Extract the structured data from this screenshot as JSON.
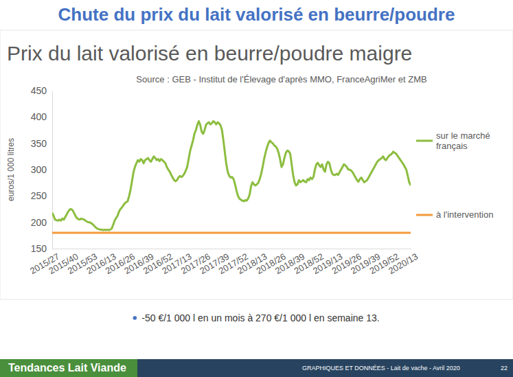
{
  "header": {
    "title": "Chute du prix du lait valorisé en beurre/poudre"
  },
  "chart_data": {
    "type": "line",
    "title": "Prix du lait valorisé en beurre/poudre maigre",
    "subtitle": "Source : GEB - Institut de l'Élevage d'après MMO, FranceAgriMer et ZMB",
    "y_label": "euros/1 000 litres",
    "ylim": [
      150,
      450
    ],
    "yticks": [
      150,
      200,
      250,
      300,
      350,
      400,
      450
    ],
    "grid": false,
    "legend": "right",
    "categories": [
      "2015/27",
      null,
      null,
      null,
      null,
      null,
      null,
      null,
      null,
      null,
      null,
      null,
      null,
      "2015/40",
      null,
      null,
      null,
      null,
      null,
      null,
      null,
      null,
      null,
      null,
      null,
      null,
      "2015/53",
      null,
      null,
      null,
      null,
      null,
      null,
      null,
      null,
      null,
      null,
      null,
      null,
      "2016/13",
      null,
      null,
      null,
      null,
      null,
      null,
      null,
      null,
      null,
      null,
      null,
      null,
      "2016/26",
      null,
      null,
      null,
      null,
      null,
      null,
      null,
      null,
      null,
      null,
      null,
      null,
      "2016/39",
      null,
      null,
      null,
      null,
      null,
      null,
      null,
      null,
      null,
      null,
      null,
      null,
      "2016/52",
      null,
      null,
      null,
      null,
      null,
      null,
      null,
      null,
      null,
      null,
      null,
      null,
      "2017/13",
      null,
      null,
      null,
      null,
      null,
      null,
      null,
      null,
      null,
      null,
      null,
      null,
      "2017/26",
      null,
      null,
      null,
      null,
      null,
      null,
      null,
      null,
      null,
      null,
      null,
      null,
      "2017/39",
      null,
      null,
      null,
      null,
      null,
      null,
      null,
      null,
      null,
      null,
      null,
      null,
      "2017/52",
      null,
      null,
      null,
      null,
      null,
      null,
      null,
      null,
      null,
      null,
      null,
      null,
      "2018/13",
      null,
      null,
      null,
      null,
      null,
      null,
      null,
      null,
      null,
      null,
      null,
      null,
      "2018/26",
      null,
      null,
      null,
      null,
      null,
      null,
      null,
      null,
      null,
      null,
      null,
      null,
      "2018/39",
      null,
      null,
      null,
      null,
      null,
      null,
      null,
      null,
      null,
      null,
      null,
      null,
      "2018/52",
      null,
      null,
      null,
      null,
      null,
      null,
      null,
      null,
      null,
      null,
      null,
      null,
      "2019/13",
      null,
      null,
      null,
      null,
      null,
      null,
      null,
      null,
      null,
      null,
      null,
      null,
      "2019/26",
      null,
      null,
      null,
      null,
      null,
      null,
      null,
      null,
      null,
      null,
      null,
      null,
      "2019/39",
      null,
      null,
      null,
      null,
      null,
      null,
      null,
      null,
      null,
      null,
      null,
      null,
      "2019/52",
      null,
      null,
      null,
      null,
      null,
      null,
      null,
      null,
      null,
      null,
      null,
      null,
      "2020/13"
    ],
    "series": [
      {
        "name": "sur le marché français",
        "color": "#8cbd3f",
        "values": [
          218,
          212,
          205,
          204,
          203,
          205,
          203,
          207,
          205,
          210,
          215,
          220,
          224,
          225,
          223,
          218,
          212,
          208,
          206,
          205,
          207,
          206,
          205,
          203,
          201,
          200,
          200,
          198,
          196,
          193,
          190,
          188,
          187,
          186,
          186,
          185,
          186,
          185,
          186,
          185,
          186,
          188,
          195,
          203,
          208,
          212,
          220,
          225,
          228,
          232,
          236,
          238,
          240,
          250,
          262,
          278,
          295,
          305,
          312,
          318,
          315,
          320,
          318,
          312,
          318,
          320,
          322,
          318,
          315,
          320,
          325,
          322,
          318,
          320,
          316,
          320,
          318,
          315,
          312,
          305,
          300,
          296,
          290,
          285,
          280,
          278,
          280,
          285,
          288,
          286,
          288,
          292,
          298,
          305,
          320,
          335,
          345,
          355,
          368,
          375,
          385,
          392,
          385,
          372,
          368,
          375,
          385,
          388,
          390,
          386,
          388,
          392,
          390,
          386,
          390,
          388,
          384,
          375,
          355,
          332,
          310,
          295,
          288,
          285,
          286,
          282,
          272,
          260,
          250,
          245,
          243,
          241,
          240,
          242,
          241,
          245,
          252,
          268,
          276,
          272,
          270,
          272,
          275,
          282,
          292,
          305,
          320,
          332,
          342,
          350,
          355,
          352,
          350,
          346,
          344,
          340,
          332,
          320,
          305,
          310,
          322,
          332,
          336,
          335,
          330,
          310,
          290,
          276,
          270,
          272,
          280,
          276,
          278,
          280,
          277,
          276,
          282,
          280,
          285,
          282,
          286,
          300,
          310,
          313,
          308,
          305,
          310,
          300,
          296,
          310,
          315,
          312,
          300,
          292,
          290,
          290,
          292,
          290,
          295,
          300,
          305,
          310,
          308,
          305,
          300,
          300,
          298,
          295,
          290,
          285,
          280,
          277,
          282,
          285,
          280,
          276,
          278,
          280,
          285,
          290,
          295,
          300,
          305,
          310,
          315,
          318,
          320,
          322,
          325,
          320,
          318,
          322,
          326,
          328,
          330,
          334,
          332,
          330,
          326,
          322,
          318,
          314,
          310,
          305,
          300,
          288,
          276,
          270
        ]
      },
      {
        "name": "à l'intervention",
        "color": "#f39a3b",
        "values": [
          180,
          180,
          180,
          180,
          180,
          180,
          180,
          180,
          180,
          180,
          180,
          180,
          180,
          180,
          180,
          180,
          180,
          180,
          180,
          180,
          180,
          180,
          180,
          180,
          180,
          180,
          180,
          180,
          180,
          180,
          180,
          180,
          180,
          180,
          180,
          180,
          180,
          180,
          180,
          180,
          180,
          180,
          180,
          180,
          180,
          180,
          180,
          180,
          180,
          180,
          180,
          180,
          180,
          180,
          180,
          180,
          180,
          180,
          180,
          180,
          180,
          180,
          180,
          180,
          180,
          180,
          180,
          180,
          180,
          180,
          180,
          180,
          180,
          180,
          180,
          180,
          180,
          180,
          180,
          180,
          180,
          180,
          180,
          180,
          180,
          180,
          180,
          180,
          180,
          180,
          180,
          180,
          180,
          180,
          180,
          180,
          180,
          180,
          180,
          180,
          180,
          180,
          180,
          180,
          180,
          180,
          180,
          180,
          180,
          180,
          180,
          180,
          180,
          180,
          180,
          180,
          180,
          180,
          180,
          180,
          180,
          180,
          180,
          180,
          180,
          180,
          180,
          180,
          180,
          180,
          180,
          180,
          180,
          180,
          180,
          180,
          180,
          180,
          180,
          180,
          180,
          180,
          180,
          180,
          180,
          180,
          180,
          180,
          180,
          180,
          180,
          180,
          180,
          180,
          180,
          180,
          180,
          180,
          180,
          180,
          180,
          180,
          180,
          180,
          180,
          180,
          180,
          180,
          180,
          180,
          180,
          180,
          180,
          180,
          180,
          180,
          180,
          180,
          180,
          180,
          180,
          180,
          180,
          180,
          180,
          180,
          180,
          180,
          180,
          180,
          180,
          180,
          180,
          180,
          180,
          180,
          180,
          180,
          180,
          180,
          180,
          180,
          180,
          180,
          180,
          180,
          180,
          180,
          180,
          180,
          180,
          180,
          180,
          180,
          180,
          180,
          180,
          180,
          180,
          180,
          180,
          180,
          180,
          180,
          180,
          180,
          180,
          180,
          180,
          180,
          180,
          180,
          180,
          180,
          180,
          180,
          180,
          180,
          180,
          180,
          180,
          180,
          180,
          180,
          180,
          180,
          180,
          180
        ]
      }
    ]
  },
  "bullets": [
    "-50 €/1 000 l en un mois à 270 €/1 000 l en semaine 13."
  ],
  "footer": {
    "brand": "Tendances Lait Viande",
    "section": "GRAPHIQUES ET DONNÉES - Lait de vache - Avril 2020",
    "page": "22"
  }
}
